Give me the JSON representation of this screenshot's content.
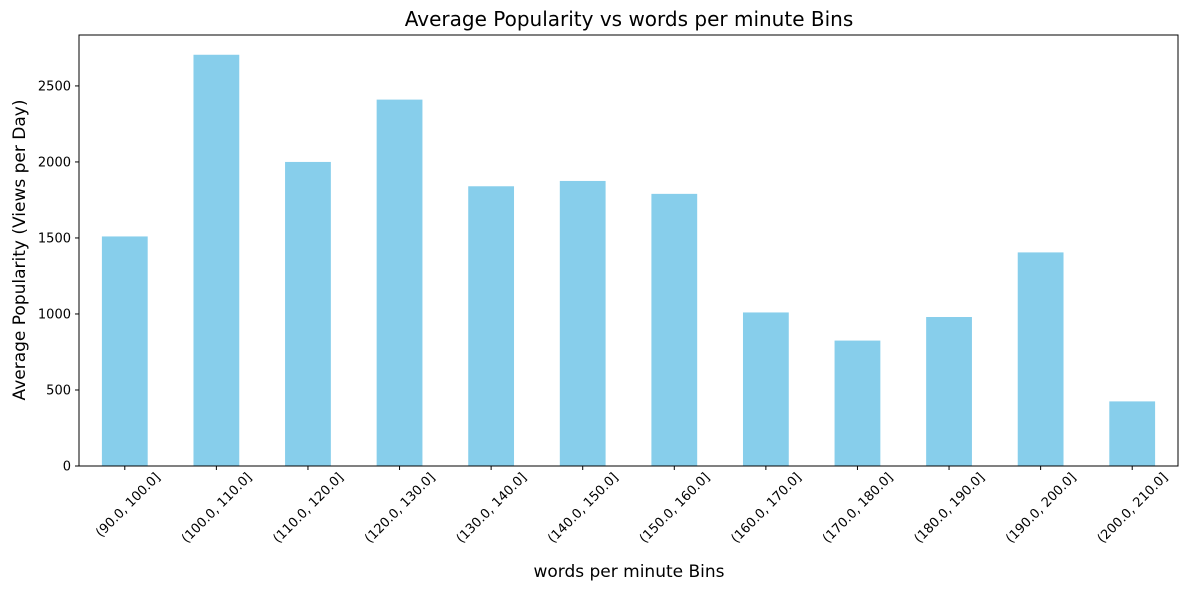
{
  "chart_data": {
    "type": "bar",
    "title": "Average Popularity vs words per minute Bins",
    "xlabel": "words per minute Bins",
    "ylabel": "Average Popularity (Views per Day)",
    "categories": [
      "(90.0, 100.0]",
      "(100.0, 110.0]",
      "(110.0, 120.0]",
      "(120.0, 130.0]",
      "(130.0, 140.0]",
      "(140.0, 150.0]",
      "(150.0, 160.0]",
      "(160.0, 170.0]",
      "(170.0, 180.0]",
      "(180.0, 190.0]",
      "(190.0, 200.0]",
      "(200.0, 210.0]"
    ],
    "values": [
      1510,
      2705,
      2000,
      2410,
      1840,
      1875,
      1790,
      1010,
      825,
      980,
      1405,
      425
    ],
    "ylim": [
      0,
      2835
    ],
    "yticks": [
      0,
      500,
      1000,
      1500,
      2000,
      2500
    ],
    "bar_color": "#87ceeb",
    "grid": false,
    "legend": "none"
  }
}
